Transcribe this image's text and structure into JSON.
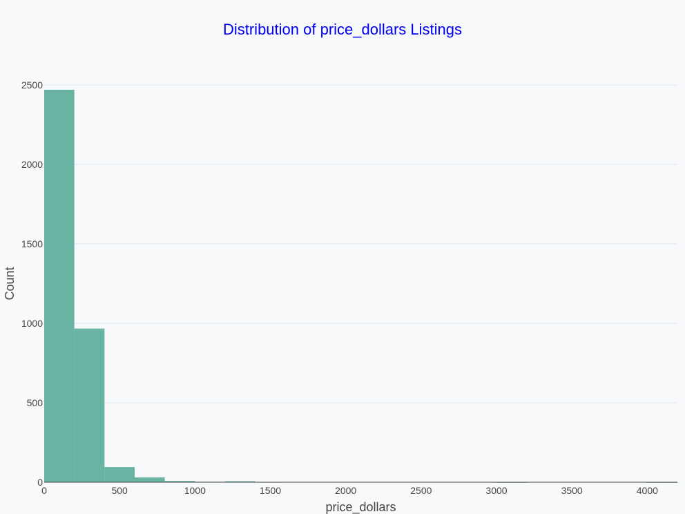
{
  "chart_data": {
    "type": "bar",
    "title": "Distribution of price_dollars Listings",
    "xlabel": "price_dollars",
    "ylabel": "Count",
    "bin_width": 200,
    "bins": [
      {
        "start": 0,
        "end": 200,
        "count": 2470
      },
      {
        "start": 200,
        "end": 400,
        "count": 967
      },
      {
        "start": 400,
        "end": 600,
        "count": 95
      },
      {
        "start": 600,
        "end": 800,
        "count": 30
      },
      {
        "start": 800,
        "end": 1000,
        "count": 8
      },
      {
        "start": 1000,
        "end": 1200,
        "count": 3
      },
      {
        "start": 1200,
        "end": 1400,
        "count": 6
      },
      {
        "start": 1400,
        "end": 1600,
        "count": 2
      },
      {
        "start": 1600,
        "end": 1800,
        "count": 0
      },
      {
        "start": 1800,
        "end": 2000,
        "count": 0
      },
      {
        "start": 2000,
        "end": 2200,
        "count": 0
      },
      {
        "start": 2200,
        "end": 2400,
        "count": 0
      },
      {
        "start": 2400,
        "end": 2600,
        "count": 0
      },
      {
        "start": 2600,
        "end": 2800,
        "count": 0
      },
      {
        "start": 2800,
        "end": 3000,
        "count": 0
      },
      {
        "start": 3000,
        "end": 3200,
        "count": 1
      },
      {
        "start": 3200,
        "end": 3400,
        "count": 0
      },
      {
        "start": 3400,
        "end": 3600,
        "count": 0
      },
      {
        "start": 3600,
        "end": 3800,
        "count": 0
      },
      {
        "start": 3800,
        "end": 4000,
        "count": 0
      },
      {
        "start": 4000,
        "end": 4200,
        "count": 1
      }
    ],
    "xlim": [
      0,
      4200
    ],
    "ylim": [
      0,
      2500
    ],
    "x_ticks": [
      0,
      500,
      1000,
      1500,
      2000,
      2500,
      3000,
      3500,
      4000
    ],
    "y_ticks": [
      0,
      500,
      1000,
      1500,
      2000,
      2500
    ],
    "grid": true,
    "legend": "none",
    "colors": {
      "bar": "#69b3a2",
      "title": "#0000ee",
      "background": "#f7f9fb",
      "grid": "#e3e7ec",
      "text": "#444444"
    }
  }
}
